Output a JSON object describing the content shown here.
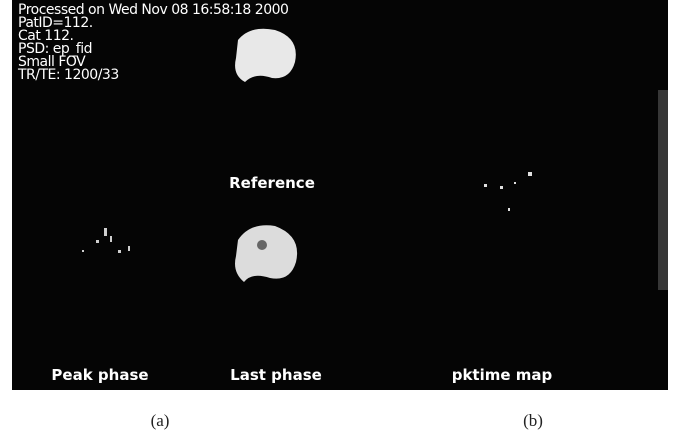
{
  "header": {
    "lines": [
      "Processed on Wed Nov 08 16:58:18 2000",
      "PatID=112.",
      "Cat 112.",
      "PSD: ep_fid",
      "Small FOV",
      "TR/TE: 1200/33"
    ]
  },
  "labels": {
    "reference": "Reference",
    "peak_phase": "Peak phase",
    "last_phase": "Last phase",
    "pktime_map": "pktime map"
  },
  "captions": {
    "a": "(a)",
    "b": "(b)"
  }
}
